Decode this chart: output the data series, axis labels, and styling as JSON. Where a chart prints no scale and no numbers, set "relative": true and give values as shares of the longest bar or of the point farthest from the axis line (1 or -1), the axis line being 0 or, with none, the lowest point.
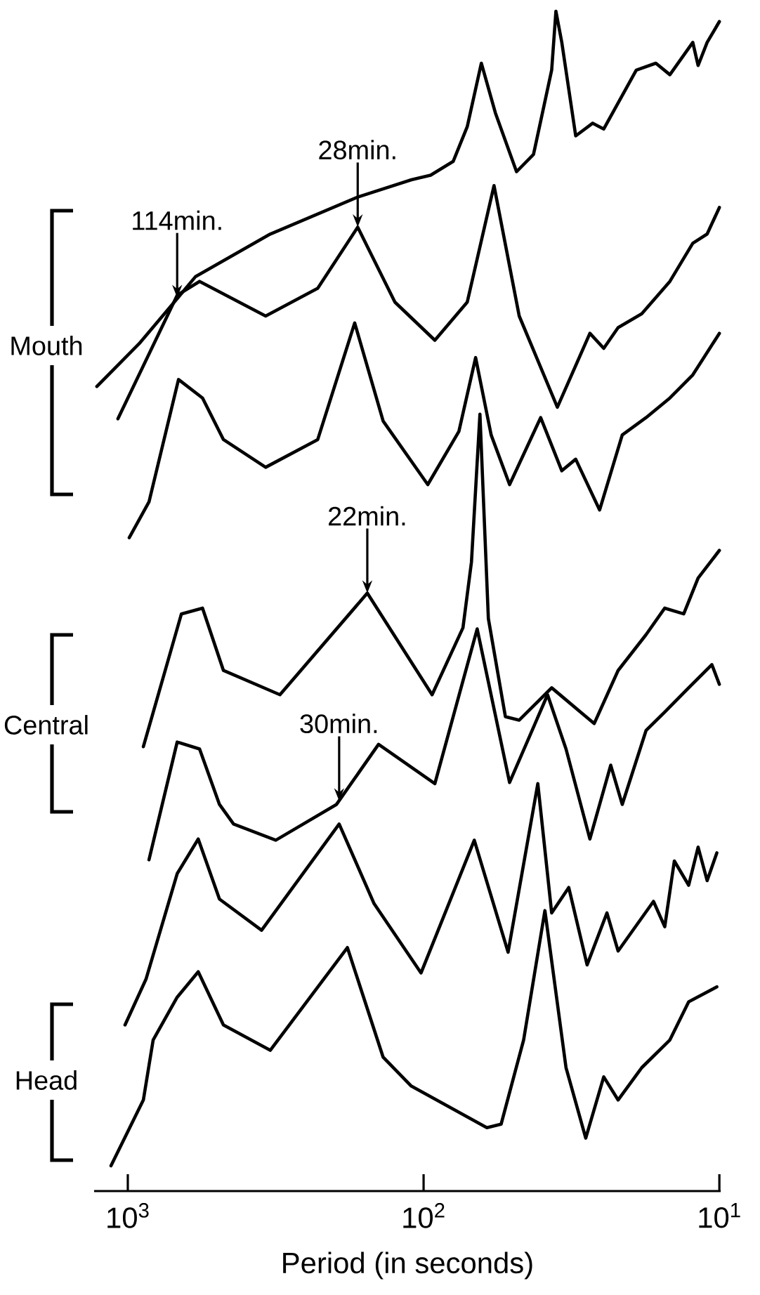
{
  "chart_data": {
    "type": "line",
    "relative": true,
    "log": "x",
    "xlabel": "Period (in seconds)",
    "xlim": [
      1300,
      9.9
    ],
    "xticks": [
      {
        "value": 1000,
        "label": "10$^{3}$"
      },
      {
        "value": 100,
        "label": "10$^{2}$"
      },
      {
        "value": 10,
        "label": "10$^{1}$"
      }
    ],
    "annotations": [
      "Mouth",
      "Central",
      "Head",
      {
        "text": "114min.",
        "x": 681,
        "y": 0.752
      },
      {
        "text": "28min.",
        "x": 167,
        "y": 0.813
      },
      {
        "text": "22min.",
        "x": 155,
        "y": 0.496
      },
      {
        "text": "30min.",
        "x": 193,
        "y": 0.316
      }
    ],
    "series": [
      {
        "color": "#000000",
        "x": [
          1273,
          916,
          681,
          591,
          330,
          167,
          110,
          94.7,
          79.4,
          71.2,
          63.8,
          57.2,
          48.5,
          42.5,
          36.9,
          35.7,
          34.1,
          30.6,
          26.8,
          24.6,
          19.1,
          16.4,
          14.7,
          12.3,
          11.8,
          11.0,
          10.0
        ],
        "values": [
          0.675,
          0.712,
          0.751,
          0.77,
          0.807,
          0.839,
          0.854,
          0.858,
          0.87,
          0.9,
          0.955,
          0.912,
          0.861,
          0.876,
          0.949,
          1.0,
          0.973,
          0.892,
          0.903,
          0.898,
          0.949,
          0.955,
          0.945,
          0.973,
          0.953,
          0.973,
          0.991
        ]
      },
      {
        "color": "#000000",
        "x": [
          1080,
          681,
          572,
          342,
          228,
          167,
          125,
          91.6,
          71.2,
          57.8,
          47.5,
          35.3,
          27.4,
          24.6,
          22.0,
          18.3,
          14.7,
          12.3,
          11.0,
          10.0
        ],
        "values": [
          0.647,
          0.754,
          0.766,
          0.736,
          0.76,
          0.813,
          0.748,
          0.715,
          0.748,
          0.849,
          0.736,
          0.657,
          0.721,
          0.708,
          0.726,
          0.738,
          0.766,
          0.799,
          0.807,
          0.83
        ]
      },
      {
        "color": "#000000",
        "x": [
          989,
          848,
          674,
          559,
          475,
          342,
          228,
          171,
          137,
          96.8,
          76.0,
          66.7,
          59.1,
          51.2,
          40.2,
          34.1,
          30.6,
          25.4,
          21.3,
          17.7,
          14.7,
          12.3,
          10.0
        ],
        "values": [
          0.544,
          0.575,
          0.681,
          0.665,
          0.629,
          0.605,
          0.629,
          0.73,
          0.645,
          0.59,
          0.636,
          0.7,
          0.633,
          0.59,
          0.648,
          0.602,
          0.612,
          0.568,
          0.633,
          0.648,
          0.665,
          0.685,
          0.721
        ]
      },
      {
        "color": "#000000",
        "x": [
          886,
          659,
          559,
          475,
          306,
          155,
          93.6,
          73.6,
          68.9,
          64.5,
          60.4,
          52.9,
          47.5,
          36.9,
          26.5,
          22.0,
          17.7,
          15.3,
          13.2,
          11.8,
          10.0
        ],
        "values": [
          0.363,
          0.478,
          0.483,
          0.429,
          0.408,
          0.496,
          0.408,
          0.466,
          0.523,
          0.651,
          0.474,
          0.389,
          0.386,
          0.414,
          0.383,
          0.429,
          0.46,
          0.483,
          0.478,
          0.509,
          0.533
        ]
      },
      {
        "color": "#000000",
        "x": [
          848,
          681,
          572,
          490,
          439,
          316,
          197,
          142,
          91.6,
          65.9,
          51.2,
          38.1,
          33.0,
          27.4,
          23.3,
          21.3,
          17.7,
          15.3,
          12.7,
          10.6,
          10.0
        ],
        "values": [
          0.265,
          0.367,
          0.361,
          0.313,
          0.296,
          0.282,
          0.313,
          0.365,
          0.331,
          0.465,
          0.332,
          0.408,
          0.361,
          0.283,
          0.347,
          0.313,
          0.377,
          0.393,
          0.414,
          0.434,
          0.417
        ]
      },
      {
        "color": "#000000",
        "x": [
          1022,
          867,
          681,
          578,
          490,
          353,
          193,
          147,
          102,
          67.4,
          51.8,
          41.1,
          36.9,
          32.3,
          28.0,
          24.0,
          22.0,
          16.7,
          15.3,
          14.2,
          12.7,
          11.8,
          11.0,
          10.2
        ],
        "values": [
          0.122,
          0.162,
          0.253,
          0.283,
          0.231,
          0.204,
          0.296,
          0.227,
          0.167,
          0.282,
          0.185,
          0.331,
          0.219,
          0.241,
          0.174,
          0.219,
          0.186,
          0.229,
          0.207,
          0.264,
          0.243,
          0.276,
          0.247,
          0.271
        ]
      },
      {
        "color": "#000000",
        "x": [
          1140,
          886,
          821,
          681,
          578,
          475,
          330,
          181,
          137,
          110,
          61.1,
          54.7,
          45.9,
          38.9,
          33.0,
          28.3,
          24.6,
          22.0,
          18.3,
          14.7,
          12.7,
          10.2
        ],
        "values": [
          0.0,
          0.057,
          0.109,
          0.146,
          0.168,
          0.122,
          0.1,
          0.189,
          0.094,
          0.069,
          0.033,
          0.036,
          0.109,
          0.221,
          0.085,
          0.024,
          0.077,
          0.057,
          0.085,
          0.109,
          0.142,
          0.155
        ]
      }
    ]
  }
}
